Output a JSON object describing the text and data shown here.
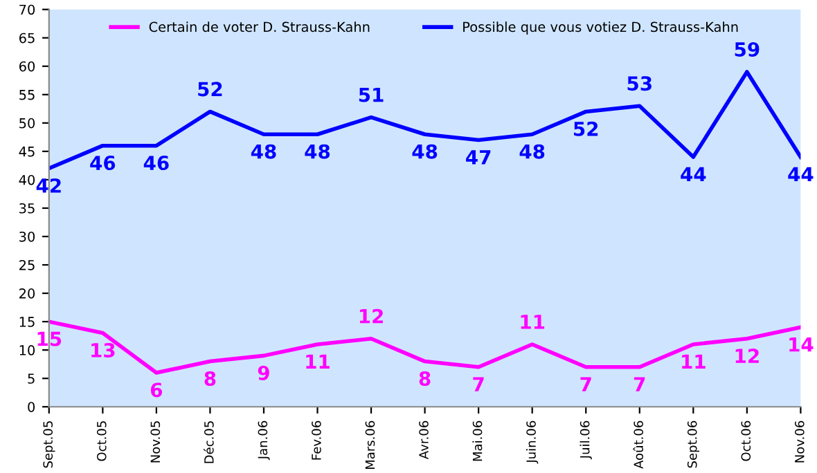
{
  "chart_data": {
    "type": "line",
    "categories": [
      "Sept.05",
      "Oct.05",
      "Nov.05",
      "Déc.05",
      "Jan.06",
      "Fev.06",
      "Mars.06",
      "Avr.06",
      "Mai.06",
      "Juin.06",
      "Juil.06",
      "Août.06",
      "Sept.06",
      "Oct.06",
      "Nov.06"
    ],
    "series": [
      {
        "name": "Certain de voter D. Strauss-Kahn",
        "color": "#ff00ff",
        "values": [
          15,
          13,
          6,
          8,
          9,
          11,
          12,
          8,
          7,
          11,
          7,
          7,
          11,
          12,
          14
        ]
      },
      {
        "name": "Possible que vous votiez D. Strauss-Kahn",
        "color": "#0000ff",
        "values": [
          42,
          46,
          46,
          52,
          48,
          48,
          51,
          48,
          47,
          48,
          52,
          53,
          44,
          59,
          44
        ]
      }
    ],
    "ylim": [
      0,
      70
    ],
    "yticks": [
      0,
      5,
      10,
      15,
      20,
      25,
      30,
      35,
      40,
      45,
      50,
      55,
      60,
      65,
      70
    ],
    "data_labels": true,
    "legend": "top",
    "grid": false,
    "marker": "none",
    "line_style": "solid"
  }
}
